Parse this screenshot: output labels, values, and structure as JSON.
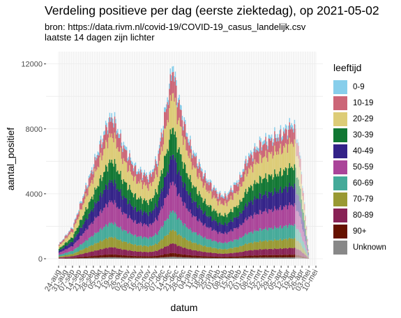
{
  "title": "Verdeling positieve per dag (eerste ziektedag), op 2021-05-02",
  "subtitle_line1": "bron: https://data.rivm.nl/covid-19/COVID-19_casus_landelijk.csv",
  "subtitle_line2": "laatste 14 dagen zijn lichter",
  "chart_data": {
    "type": "bar",
    "stacked": true,
    "xlabel": "datum",
    "ylabel": "aantal_positief",
    "ylim": [
      0,
      12500
    ],
    "yticks": [
      0,
      4000,
      8000,
      12000
    ],
    "yticklabels": [
      "0",
      "4000",
      "8000",
      "12000"
    ],
    "x_start": "2020-08-24",
    "x_end": "2021-05-02",
    "xticklabels": [
      "24-aug",
      "31-aug",
      "07-sep",
      "14-sep",
      "21-sep",
      "28-sep",
      "05-okt",
      "12-okt",
      "19-okt",
      "26-okt",
      "02-nov",
      "09-nov",
      "16-nov",
      "23-nov",
      "30-nov",
      "07-dec",
      "14-dec",
      "21-dec",
      "28-dec",
      "04-jan",
      "11-jan",
      "18-jan",
      "25-jan",
      "01-feb",
      "08-feb",
      "15-feb",
      "22-feb",
      "01-mrt",
      "08-mrt",
      "15-mrt",
      "22-mrt",
      "29-mrt",
      "05-apr",
      "12-apr",
      "19-apr",
      "26-apr",
      "03-mei",
      "10-mei"
    ],
    "lighter_last_days": 14,
    "grid": true,
    "legend_position": "right",
    "legend_title": "leeftijd",
    "total_profile": [
      {
        "date": "2020-08-24",
        "total": 900
      },
      {
        "date": "2020-09-07",
        "total": 2000
      },
      {
        "date": "2020-09-21",
        "total": 4600
      },
      {
        "date": "2020-10-05",
        "total": 7200
      },
      {
        "date": "2020-10-12",
        "total": 8500
      },
      {
        "date": "2020-10-17",
        "total": 8900
      },
      {
        "date": "2020-10-26",
        "total": 7300
      },
      {
        "date": "2020-11-09",
        "total": 5600
      },
      {
        "date": "2020-11-23",
        "total": 5100
      },
      {
        "date": "2020-12-01",
        "total": 6200
      },
      {
        "date": "2020-12-07",
        "total": 8500
      },
      {
        "date": "2020-12-14",
        "total": 11000
      },
      {
        "date": "2020-12-16",
        "total": 12200
      },
      {
        "date": "2020-12-21",
        "total": 10300
      },
      {
        "date": "2020-12-28",
        "total": 8400
      },
      {
        "date": "2021-01-04",
        "total": 6900
      },
      {
        "date": "2021-01-18",
        "total": 5100
      },
      {
        "date": "2021-02-01",
        "total": 4000
      },
      {
        "date": "2021-02-08",
        "total": 3900
      },
      {
        "date": "2021-02-22",
        "total": 5000
      },
      {
        "date": "2021-03-01",
        "total": 6200
      },
      {
        "date": "2021-03-15",
        "total": 7200
      },
      {
        "date": "2021-03-29",
        "total": 7600
      },
      {
        "date": "2021-04-05",
        "total": 7800
      },
      {
        "date": "2021-04-12",
        "total": 8200
      },
      {
        "date": "2021-04-17",
        "total": 8400
      },
      {
        "date": "2021-04-22",
        "total": 7200
      },
      {
        "date": "2021-04-26",
        "total": 4800
      },
      {
        "date": "2021-04-30",
        "total": 2000
      },
      {
        "date": "2021-05-02",
        "total": 600
      }
    ],
    "series": [
      {
        "name": "0-9",
        "color": "#87ceeb",
        "share": 0.03
      },
      {
        "name": "10-19",
        "color": "#cc6677",
        "share": 0.11
      },
      {
        "name": "20-29",
        "color": "#ddcc77",
        "share": 0.18
      },
      {
        "name": "30-39",
        "color": "#117733",
        "share": 0.14
      },
      {
        "name": "40-49",
        "color": "#332288",
        "share": 0.14
      },
      {
        "name": "50-59",
        "color": "#aa4499",
        "share": 0.15
      },
      {
        "name": "60-69",
        "color": "#44aa99",
        "share": 0.1
      },
      {
        "name": "70-79",
        "color": "#999933",
        "share": 0.07
      },
      {
        "name": "80-89",
        "color": "#882255",
        "share": 0.05
      },
      {
        "name": "90+",
        "color": "#661100",
        "share": 0.02
      },
      {
        "name": "Unknown",
        "color": "#888888",
        "share": 0.01
      }
    ]
  }
}
